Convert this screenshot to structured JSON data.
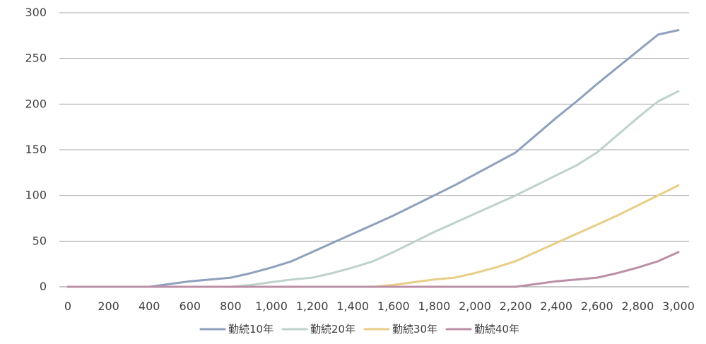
{
  "chart_data": {
    "type": "line",
    "title": "",
    "xlabel": "",
    "ylabel": "",
    "xlim": [
      0,
      3000
    ],
    "ylim": [
      0,
      300
    ],
    "x_ticks": [
      0,
      200,
      400,
      600,
      800,
      1000,
      1200,
      1400,
      1600,
      1800,
      2000,
      2200,
      2400,
      2600,
      2800,
      3000
    ],
    "x_tick_labels": [
      "0",
      "200",
      "400",
      "600",
      "800",
      "1,000",
      "1,200",
      "1,400",
      "1,600",
      "1,800",
      "2,000",
      "2,200",
      "2,400",
      "2,600",
      "2,800",
      "3,000"
    ],
    "y_ticks": [
      0,
      50,
      100,
      150,
      200,
      250,
      300
    ],
    "y_tick_labels": [
      "0",
      "50",
      "100",
      "150",
      "200",
      "250",
      "300"
    ],
    "grid": "horizontal",
    "legend_position": "bottom",
    "x": [
      0,
      100,
      200,
      300,
      400,
      500,
      600,
      700,
      800,
      900,
      1000,
      1100,
      1200,
      1300,
      1400,
      1500,
      1600,
      1700,
      1800,
      1900,
      2000,
      2100,
      2200,
      2300,
      2400,
      2500,
      2600,
      2700,
      2800,
      2900,
      3000
    ],
    "series": [
      {
        "name": "勤続10年",
        "color": "#8EA1BC",
        "values": [
          0,
          0,
          0,
          0,
          0,
          3,
          6,
          8,
          10,
          15,
          21,
          28,
          38,
          48,
          58,
          68,
          78,
          89,
          100,
          111,
          123,
          135,
          147,
          166,
          185,
          203,
          222,
          240,
          258,
          276,
          281
        ]
      },
      {
        "name": "勤続20年",
        "color": "#BDD3C9",
        "values": [
          0,
          0,
          0,
          0,
          0,
          0,
          0,
          0,
          0,
          2,
          5,
          8,
          10,
          15,
          21,
          28,
          38,
          49,
          60,
          70,
          80,
          90,
          100,
          111,
          122,
          133,
          147,
          166,
          185,
          203,
          214
        ]
      },
      {
        "name": "勤続30年",
        "color": "#E8CD86",
        "values": [
          0,
          0,
          0,
          0,
          0,
          0,
          0,
          0,
          0,
          0,
          0,
          0,
          0,
          0,
          0,
          0,
          2,
          5,
          8,
          10,
          15,
          21,
          28,
          38,
          48,
          58,
          68,
          78,
          89,
          100,
          111
        ]
      },
      {
        "name": "勤続40年",
        "color": "#BB8FA6",
        "values": [
          0,
          0,
          0,
          0,
          0,
          0,
          0,
          0,
          0,
          0,
          0,
          0,
          0,
          0,
          0,
          0,
          0,
          0,
          0,
          0,
          0,
          0,
          0,
          3,
          6,
          8,
          10,
          15,
          21,
          28,
          38
        ]
      }
    ]
  }
}
